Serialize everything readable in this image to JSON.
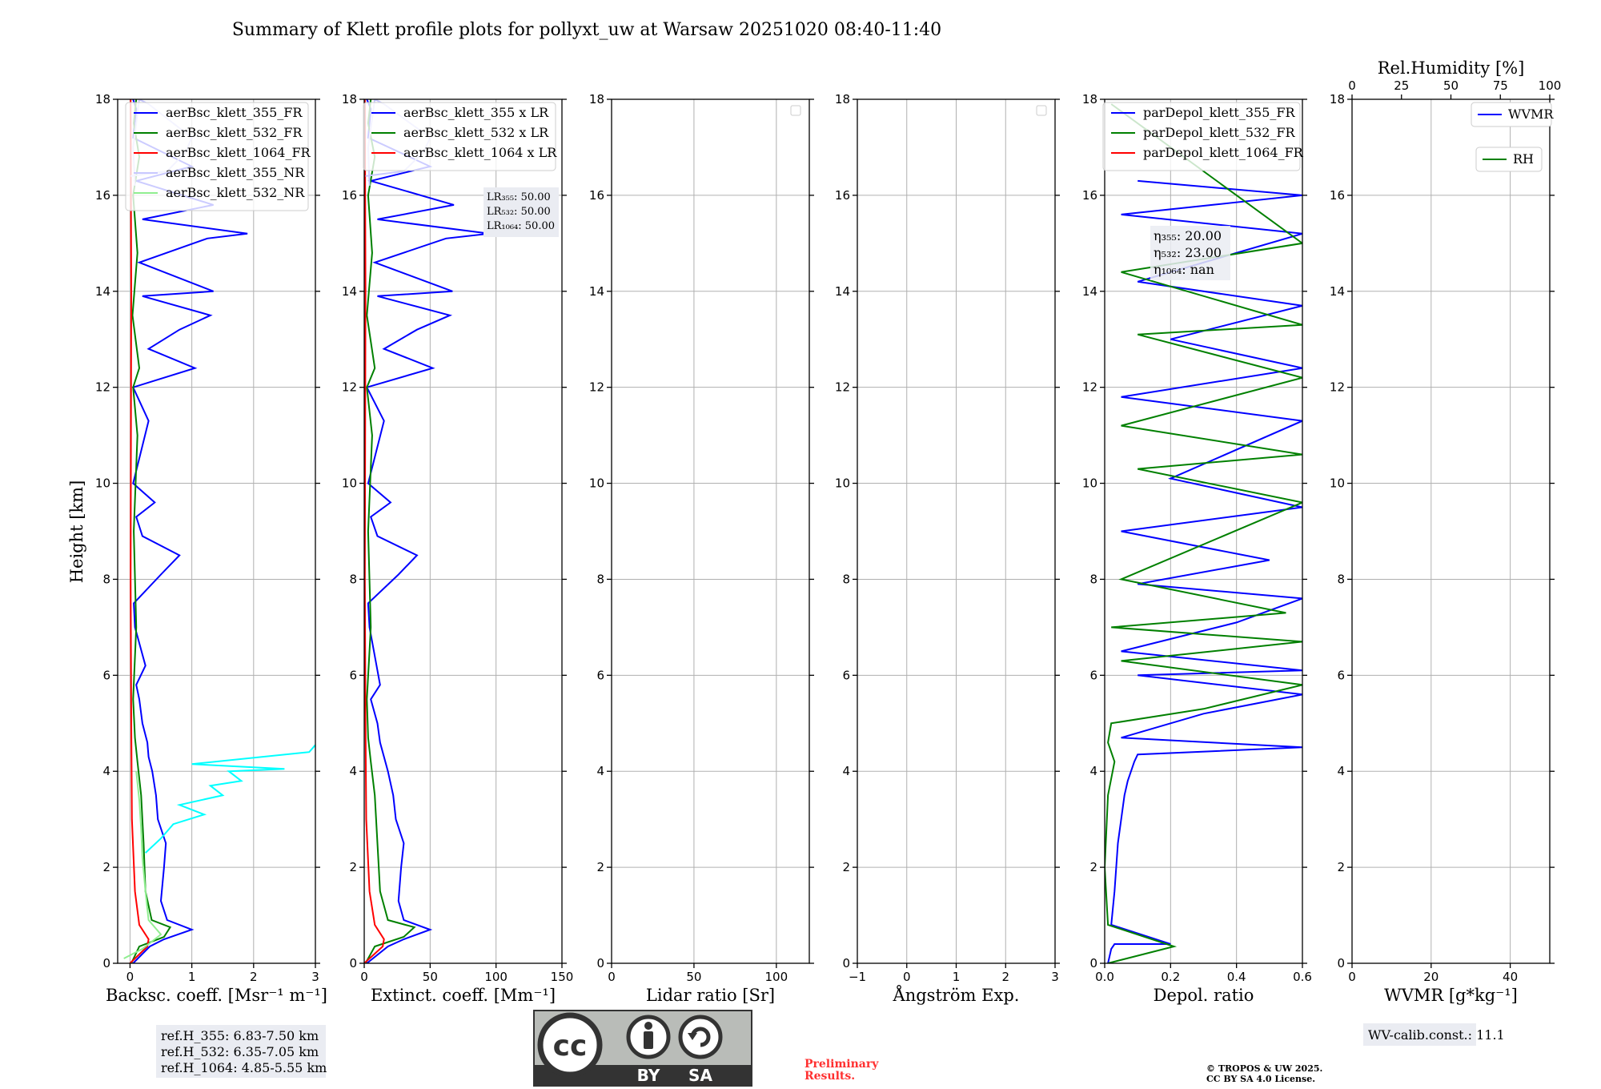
{
  "title": "Summary of Klett profile plots for pollyxt_uw at Warsaw 20251020 08:40-11:40",
  "chart_data": [
    {
      "type": "line",
      "panel": "backscatter",
      "xlabel": "Backsc. coeff. [Msr⁻¹ m⁻¹]",
      "ylabel": "Height [km]",
      "xlim": [
        -0.2,
        3
      ],
      "ylim": [
        0,
        18
      ],
      "xticks": [
        "0",
        "1",
        "2",
        "3"
      ],
      "xtick_values": [
        0,
        1,
        2,
        3
      ],
      "series": [
        {
          "name": "aerBsc_klett_355_FR",
          "color": "#0000ff",
          "x": [
            0.05,
            0.32,
            0.55,
            1.0,
            0.6,
            0.5,
            0.55,
            0.58,
            0.45,
            0.42,
            0.36,
            0.3,
            0.28,
            0.2,
            0.15,
            0.1,
            0.25,
            0.08,
            0.06,
            0.5,
            0.8,
            0.2,
            0.1,
            0.4,
            0.05,
            0.3,
            0.05,
            1.05,
            0.3,
            0.8,
            1.3,
            0.2,
            1.35,
            0.15,
            1.25,
            1.9,
            0.2,
            1.35,
            0.1,
            1.0,
            0.05,
            0.1,
            0.05
          ],
          "y": [
            0.0,
            0.35,
            0.5,
            0.7,
            0.9,
            1.3,
            2.0,
            2.5,
            3.0,
            3.5,
            4.0,
            4.3,
            4.6,
            5.0,
            5.5,
            5.8,
            6.2,
            7.0,
            7.5,
            8.1,
            8.5,
            8.9,
            9.3,
            9.6,
            10.0,
            11.3,
            12.0,
            12.4,
            12.8,
            13.2,
            13.5,
            13.9,
            14.0,
            14.6,
            15.1,
            15.2,
            15.5,
            15.8,
            16.3,
            16.6,
            17.2,
            17.8,
            18.0
          ]
        },
        {
          "name": "aerBsc_klett_532_FR",
          "color": "#008000",
          "x": [
            0.02,
            0.15,
            0.55,
            0.65,
            0.35,
            0.25,
            0.22,
            0.18,
            0.12,
            0.08,
            0.05,
            0.1,
            0.06,
            0.12,
            0.05,
            0.15,
            0.04,
            0.12,
            0.05,
            0.15,
            0.06,
            0.1
          ],
          "y": [
            0.0,
            0.35,
            0.55,
            0.75,
            0.9,
            1.5,
            2.5,
            3.5,
            4.2,
            4.7,
            5.5,
            7.0,
            9.0,
            11.0,
            12.0,
            12.4,
            13.5,
            14.8,
            16.0,
            16.8,
            17.5,
            18.0
          ]
        },
        {
          "name": "aerBsc_klett_1064_FR",
          "color": "#ff0000",
          "x": [
            0.0,
            0.28,
            0.3,
            0.15,
            0.08,
            0.03,
            0.02,
            0.01,
            0.02,
            0.01
          ],
          "y": [
            0.0,
            0.35,
            0.5,
            0.8,
            1.5,
            3.0,
            5.0,
            8.0,
            14.0,
            18.0
          ]
        },
        {
          "name": "aerBsc_klett_355_NR",
          "color": "#c8c8ff",
          "x": [
            0.01,
            0.6,
            0.9,
            1.0,
            0.8,
            0.6,
            0.5,
            0.4,
            0.3,
            0.15,
            0.05,
            0.08
          ],
          "y": [
            16.4,
            16.5,
            16.9,
            17.2,
            17.4,
            17.6,
            17.7,
            17.8,
            17.9,
            18.0,
            17.0,
            16.2
          ]
        },
        {
          "name": "aerBsc_klett_532_NR",
          "color": "#90ee90",
          "x": [
            -0.1,
            0.2,
            0.5,
            0.3,
            0.25,
            0.2,
            0.18,
            0.15,
            0.1
          ],
          "y": [
            0.1,
            0.3,
            0.6,
            0.9,
            1.5,
            2.2,
            2.8,
            3.4,
            4.0
          ]
        },
        {
          "name": "",
          "color": "#00ffff",
          "x": [
            0.25,
            0.5,
            0.7,
            1.2,
            0.8,
            1.5,
            1.3,
            1.8,
            1.6,
            2.5,
            1.0,
            2.9,
            3.0
          ],
          "y": [
            2.3,
            2.6,
            2.9,
            3.1,
            3.3,
            3.5,
            3.7,
            3.8,
            4.0,
            4.05,
            4.15,
            4.4,
            4.55
          ]
        }
      ]
    },
    {
      "type": "line",
      "panel": "extinction",
      "xlabel": "Extinct. coeff. [Mm⁻¹]",
      "xlim": [
        0,
        150
      ],
      "ylim": [
        0,
        18
      ],
      "xticks": [
        "0",
        "50",
        "100",
        "150"
      ],
      "xtick_values": [
        0,
        50,
        100,
        150
      ],
      "series": [
        {
          "name": "aerBsc_klett_355 x LR",
          "color": "#0000ff",
          "x": [
            2,
            18,
            30,
            50,
            30,
            26,
            28,
            30,
            24,
            22,
            18,
            15,
            12,
            10,
            5,
            12,
            4,
            3,
            26,
            40,
            10,
            5,
            20,
            3,
            15,
            2,
            52,
            15,
            40,
            65,
            10,
            67,
            8,
            62,
            95,
            10,
            68,
            5,
            50,
            3,
            5,
            2
          ],
          "y": [
            0.0,
            0.35,
            0.5,
            0.7,
            0.9,
            1.3,
            2.0,
            2.5,
            3.0,
            3.5,
            4.0,
            4.3,
            4.6,
            5.0,
            5.5,
            5.8,
            7.0,
            7.5,
            8.1,
            8.5,
            8.9,
            9.3,
            9.6,
            10.0,
            11.3,
            12.0,
            12.4,
            12.8,
            13.2,
            13.5,
            13.9,
            14.0,
            14.6,
            15.1,
            15.2,
            15.5,
            15.8,
            16.3,
            16.6,
            17.2,
            17.8,
            18.0
          ]
        },
        {
          "name": "aerBsc_klett_532 x LR",
          "color": "#008000",
          "x": [
            1,
            8,
            30,
            38,
            18,
            12,
            10,
            8,
            5,
            3,
            2,
            5,
            3,
            6,
            2,
            8,
            2,
            6,
            3,
            8,
            3,
            5
          ],
          "y": [
            0.0,
            0.35,
            0.55,
            0.75,
            0.9,
            1.5,
            2.5,
            3.5,
            4.2,
            4.7,
            5.5,
            7.0,
            9.0,
            11.0,
            12.0,
            12.4,
            13.5,
            14.8,
            16.0,
            16.8,
            17.5,
            18.0
          ]
        },
        {
          "name": "aerBsc_klett_1064 x LR",
          "color": "#ff0000",
          "x": [
            0,
            14,
            15,
            8,
            4,
            1.5,
            1,
            0.5,
            1,
            0.5
          ],
          "y": [
            0.0,
            0.35,
            0.5,
            0.8,
            1.5,
            3.0,
            5.0,
            8.0,
            14.0,
            18.0
          ]
        },
        {
          "name": "",
          "color": "#c8c8ff",
          "x": [
            1,
            30,
            45,
            50,
            40,
            30,
            25,
            20,
            15,
            8,
            3,
            4
          ],
          "y": [
            16.4,
            16.5,
            16.9,
            17.2,
            17.4,
            17.6,
            17.7,
            17.8,
            17.9,
            18.0,
            17.0,
            16.2
          ]
        }
      ],
      "annotation": [
        "LR₃₅₅: 50.00",
        "LR₅₃₂: 50.00",
        "LR₁₀₆₄: 50.00"
      ]
    },
    {
      "type": "line",
      "panel": "lidar_ratio",
      "xlabel": "Lidar ratio [Sr]",
      "xlim": [
        0,
        120
      ],
      "ylim": [
        0,
        18
      ],
      "xticks": [
        "0",
        "50",
        "100"
      ],
      "xtick_values": [
        0,
        50,
        100
      ],
      "series": []
    },
    {
      "type": "line",
      "panel": "angstrom",
      "xlabel": "Ångström Exp.",
      "xlim": [
        -1,
        3
      ],
      "ylim": [
        0,
        18
      ],
      "xticks": [
        "−1",
        "0",
        "1",
        "2",
        "3"
      ],
      "xtick_values": [
        -1,
        0,
        1,
        2,
        3
      ],
      "series": []
    },
    {
      "type": "line",
      "panel": "depolarization",
      "xlabel": "Depol. ratio",
      "xlim": [
        0,
        0.6
      ],
      "ylim": [
        0,
        18
      ],
      "xticks": [
        "0.0",
        "0.2",
        "0.4",
        "0.6"
      ],
      "xtick_values": [
        0,
        0.2,
        0.4,
        0.6
      ],
      "series": [
        {
          "name": "parDepol_klett_355_FR",
          "color": "#0000ff",
          "x": [
            0.01,
            0.02,
            0.03,
            0.2,
            0.02,
            0.03,
            0.04,
            0.05,
            0.06,
            0.07,
            0.08,
            0.09,
            0.1,
            0.6,
            0.05,
            0.3,
            0.6,
            0.1,
            0.6,
            0.05,
            0.4,
            0.6,
            0.1,
            0.5,
            0.05,
            0.6,
            0.2,
            0.6,
            0.05,
            0.6,
            0.2,
            0.6,
            0.1,
            0.6,
            0.05,
            0.6,
            0.1
          ],
          "y": [
            0.0,
            0.3,
            0.4,
            0.4,
            0.8,
            1.5,
            2.5,
            3.0,
            3.5,
            3.8,
            4.0,
            4.2,
            4.35,
            4.5,
            4.7,
            5.2,
            5.6,
            6.0,
            6.1,
            6.5,
            7.1,
            7.6,
            7.9,
            8.4,
            9.0,
            9.5,
            10.1,
            11.3,
            11.8,
            12.4,
            13.0,
            13.7,
            14.2,
            15.2,
            15.6,
            16.0,
            16.3
          ]
        },
        {
          "name": "parDepol_klett_532_FR",
          "color": "#008000",
          "x": [
            0.01,
            0.21,
            0.01,
            0.0,
            0.01,
            0.03,
            0.01,
            0.02,
            0.3,
            0.6,
            0.05,
            0.6,
            0.02,
            0.55,
            0.05,
            0.6,
            0.1,
            0.6,
            0.05,
            0.6,
            0.1,
            0.6,
            0.05,
            0.6,
            0.02
          ],
          "y": [
            0.0,
            0.35,
            0.8,
            2.0,
            3.5,
            4.2,
            4.6,
            5.0,
            5.3,
            5.8,
            6.3,
            6.7,
            7.0,
            7.3,
            8.0,
            9.6,
            10.3,
            10.6,
            11.2,
            12.2,
            13.1,
            13.3,
            14.4,
            15.0,
            17.9
          ]
        },
        {
          "name": "parDepol_klett_1064_FR",
          "color": "#ff0000",
          "x": [],
          "y": []
        }
      ],
      "annotation": [
        "η₃₅₅: 20.00",
        "η₅₃₂: 23.00",
        "η₁₀₆₄: nan"
      ]
    },
    {
      "type": "line",
      "panel": "wvmr",
      "xlabel": "WVMR [g*kg⁻¹]",
      "top_xlabel": "Rel.Humidity [%]",
      "xlim": [
        0,
        50
      ],
      "top_xlim": [
        0,
        100
      ],
      "ylim": [
        0,
        18
      ],
      "xticks": [
        "0",
        "20",
        "40"
      ],
      "xtick_values": [
        0,
        20,
        40
      ],
      "top_xticks": [
        "0",
        "25",
        "50",
        "75",
        "100"
      ],
      "top_xtick_values": [
        0,
        25,
        50,
        75,
        100
      ],
      "series": [
        {
          "name": "WVMR",
          "color": "#0000ff",
          "x": [],
          "y": []
        },
        {
          "name": "RH",
          "color": "#008000",
          "x": [],
          "y": []
        }
      ]
    }
  ],
  "yticks": [
    "0",
    "2",
    "4",
    "6",
    "8",
    "10",
    "12",
    "14",
    "16",
    "18"
  ],
  "ytick_values": [
    0,
    2,
    4,
    6,
    8,
    10,
    12,
    14,
    16,
    18
  ],
  "ref_heights": [
    "ref.H_355: 6.83-7.50 km",
    "ref.H_532: 6.35-7.05 km",
    "ref.H_1064: 4.85-5.55 km"
  ],
  "wv_calib": "WV-calib.const.: 11.1",
  "license_badge": {
    "by": "BY",
    "sa": "SA",
    "cc": "cc"
  },
  "preliminary": [
    "Preliminary",
    "Results."
  ],
  "copyright": [
    "© TROPOS & UW 2025.",
    "CC BY SA 4.0 License."
  ]
}
